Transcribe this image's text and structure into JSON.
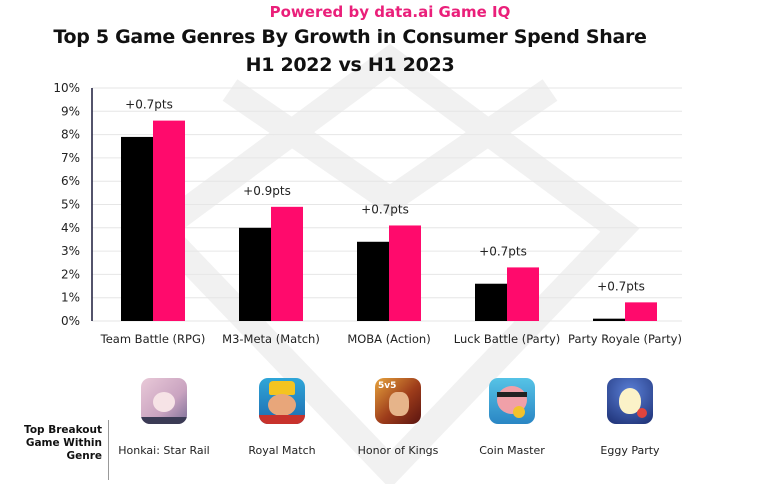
{
  "header": {
    "powered_by": "Powered by data.ai Game IQ",
    "title_line1": "Top 5 Game Genres By Growth in Consumer Spend Share",
    "title_line2": "H1 2022 vs H1 2023"
  },
  "colors": {
    "h1_2022": "#000000",
    "h1_2023": "#ff0a6c",
    "accent": "#ea1f7a",
    "grid": "#e6e6e6",
    "axis": "#1a1a3a"
  },
  "chart_data": {
    "type": "bar",
    "title": "Top 5 Game Genres By Growth in Consumer Spend Share H1 2022 vs H1 2023",
    "subtitle": "Powered by data.ai Game IQ",
    "xlabel": "",
    "ylabel": "",
    "ylim": [
      0,
      10
    ],
    "yticks": [
      "0%",
      "1%",
      "2%",
      "3%",
      "4%",
      "5%",
      "6%",
      "7%",
      "8%",
      "9%",
      "10%"
    ],
    "grid": true,
    "legend": "none",
    "categories": [
      "Team Battle (RPG)",
      "M3-Meta (Match)",
      "MOBA (Action)",
      "Luck Battle (Party)",
      "Party Royale (Party)"
    ],
    "series": [
      {
        "name": "H1 2022",
        "values": [
          7.9,
          4.0,
          3.4,
          1.6,
          0.1
        ]
      },
      {
        "name": "H1 2023",
        "values": [
          8.6,
          4.9,
          4.1,
          2.3,
          0.8
        ]
      }
    ],
    "annotations": [
      "+0.7pts",
      "+0.9pts",
      "+0.7pts",
      "+0.7pts",
      "+0.7pts"
    ]
  },
  "breakout": {
    "label_line1": "Top Breakout",
    "label_line2": "Game Within",
    "label_line3": "Genre",
    "games": [
      {
        "name": "Honkai: Star Rail",
        "icon": "honkai-star-rail-icon"
      },
      {
        "name": "Royal Match",
        "icon": "royal-match-icon"
      },
      {
        "name": "Honor of Kings",
        "icon": "honor-of-kings-icon"
      },
      {
        "name": "Coin Master",
        "icon": "coin-master-icon"
      },
      {
        "name": "Eggy Party",
        "icon": "eggy-party-icon"
      }
    ]
  }
}
